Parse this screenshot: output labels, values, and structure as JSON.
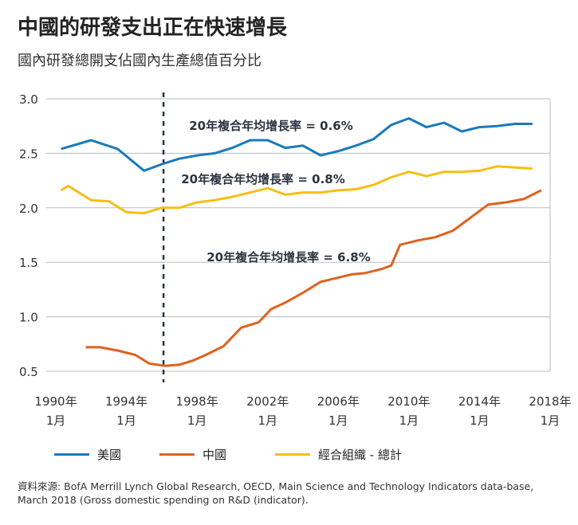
{
  "title": "中國的研發支出正在快速增長",
  "subtitle": "國內研發總開支佔國內生產總值百分比",
  "source": "資料來源: BofA Merrill Lynch Global Research, OECD, Main Science and Technology Indicators data-base, March 2018 (Gross domestic spending on R&D (indicator).",
  "colors": {
    "us": "#1a7ab8",
    "china": "#e0611d",
    "oecd": "#f5be14",
    "divider": "#2a3545"
  },
  "chart_data": {
    "type": "line",
    "x_range": [
      1990,
      2018
    ],
    "ylim": [
      0.5,
      3.0
    ],
    "y_ticks": [
      {
        "v": 0.5,
        "label": "0.5"
      },
      {
        "v": 1.0,
        "label": "1.0"
      },
      {
        "v": 1.5,
        "label": "1.5"
      },
      {
        "v": 2.0,
        "label": "2.0"
      },
      {
        "v": 2.5,
        "label": "2.5"
      },
      {
        "v": 3.0,
        "label": "3.0"
      }
    ],
    "x_ticks": [
      {
        "x": 1990,
        "year": "1990年",
        "month": "1月"
      },
      {
        "x": 1994,
        "year": "1994年",
        "month": "1月"
      },
      {
        "x": 1998,
        "year": "1998年",
        "month": "1月"
      },
      {
        "x": 2002,
        "year": "2002年",
        "month": "1月"
      },
      {
        "x": 2006,
        "year": "2006年",
        "month": "1月"
      },
      {
        "x": 2010,
        "year": "2010年",
        "month": "1月"
      },
      {
        "x": 2014,
        "year": "2014年",
        "month": "1月"
      },
      {
        "x": 2018,
        "year": "2018年",
        "month": "1月"
      }
    ],
    "vline_x": 1996.1,
    "grid": true,
    "series": [
      {
        "name": "美國",
        "color": "#1a7ab8",
        "x": [
          1990.3,
          1992,
          1993.5,
          1995,
          1996,
          1997,
          1998,
          1999,
          2000,
          2001,
          2002,
          2003,
          2004,
          2005,
          2006,
          2007,
          2008,
          2009,
          2010,
          2011,
          2012,
          2013,
          2014,
          2015,
          2016,
          2017
        ],
        "y": [
          2.54,
          2.62,
          2.54,
          2.34,
          2.4,
          2.45,
          2.48,
          2.5,
          2.55,
          2.62,
          2.62,
          2.55,
          2.57,
          2.48,
          2.52,
          2.57,
          2.63,
          2.76,
          2.82,
          2.74,
          2.78,
          2.7,
          2.74,
          2.75,
          2.77,
          2.77
        ],
        "label": "20年複合年均增長率 = 0.6%"
      },
      {
        "name": "經合組織 - 總計",
        "color": "#f5be14",
        "x": [
          1990.3,
          1990.7,
          1992,
          1993,
          1994,
          1995,
          1996,
          1997,
          1998,
          1999,
          2000,
          2001,
          2002,
          2003,
          2004,
          2005,
          2006,
          2007,
          2008,
          2009,
          2010,
          2011,
          2012,
          2013,
          2014,
          2015,
          2016,
          2017
        ],
        "y": [
          2.16,
          2.2,
          2.07,
          2.06,
          1.96,
          1.95,
          2.0,
          2.0,
          2.05,
          2.07,
          2.1,
          2.14,
          2.18,
          2.12,
          2.14,
          2.14,
          2.16,
          2.17,
          2.21,
          2.28,
          2.33,
          2.29,
          2.33,
          2.33,
          2.34,
          2.38,
          2.37,
          2.36
        ],
        "label": "20年複合年均增長率 = 0.8%"
      },
      {
        "name": "中國",
        "color": "#e0611d",
        "x": [
          1991.7,
          1992.5,
          1993.5,
          1994.5,
          1995.3,
          1996.2,
          1997,
          1997.8,
          1998.5,
          1999.5,
          2000.5,
          2001.5,
          2002.2,
          2003,
          2004,
          2005,
          2006,
          2006.8,
          2007.5,
          2008.5,
          2009,
          2009.5,
          2010.5,
          2011.5,
          2012.5,
          2013.5,
          2014.5,
          2015.5,
          2016.5,
          2017.5
        ],
        "y": [
          0.72,
          0.72,
          0.69,
          0.65,
          0.57,
          0.55,
          0.56,
          0.6,
          0.65,
          0.73,
          0.9,
          0.95,
          1.07,
          1.13,
          1.22,
          1.32,
          1.36,
          1.39,
          1.4,
          1.44,
          1.47,
          1.66,
          1.7,
          1.73,
          1.79,
          1.91,
          2.03,
          2.05,
          2.08,
          2.16
        ],
        "label": "20年複合年均增長率 = 6.8%"
      }
    ]
  },
  "legend": [
    {
      "name": "美國",
      "color": "#1a7ab8"
    },
    {
      "name": "中國",
      "color": "#e0611d"
    },
    {
      "name": "經合組織 - 總計",
      "color": "#f5be14"
    }
  ]
}
